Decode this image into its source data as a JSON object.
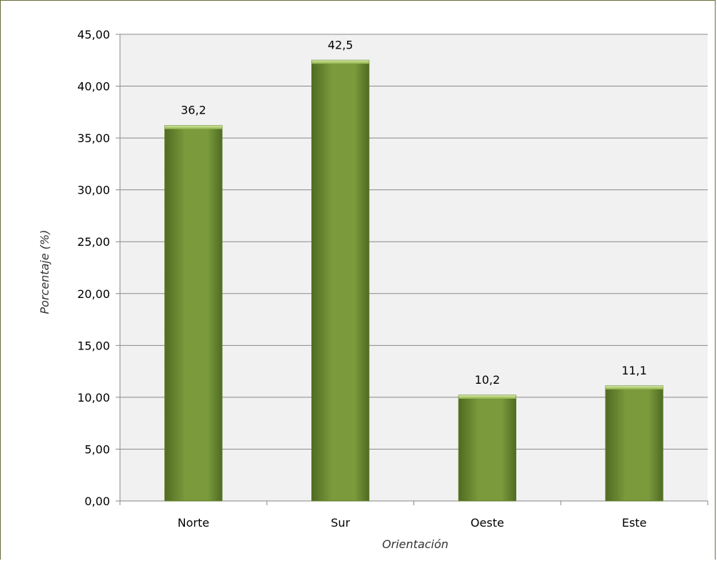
{
  "chart_data": {
    "type": "bar",
    "categories": [
      "Norte",
      "Sur",
      "Oeste",
      "Este"
    ],
    "values": [
      36.2,
      42.5,
      10.2,
      11.1
    ],
    "data_labels": [
      "36,2",
      "42,5",
      "10,2",
      "11,1"
    ],
    "title": "",
    "xlabel": "Orientación",
    "ylabel": "Porcentaje (%)",
    "ylim": [
      0,
      45
    ],
    "yticks": [
      0,
      5,
      10,
      15,
      20,
      25,
      30,
      35,
      40,
      45
    ],
    "ytick_labels": [
      "0,00",
      "5,00",
      "10,00",
      "15,00",
      "20,00",
      "25,00",
      "30,00",
      "35,00",
      "40,00",
      "45,00"
    ],
    "grid": true,
    "legend": "none",
    "colors": {
      "bar": "#7a9a3c",
      "bar_dark": "#4f6b22",
      "bar_light": "#a8c66a",
      "plot_background": "#f1f1f1",
      "grid": "#8a8a8a"
    }
  }
}
